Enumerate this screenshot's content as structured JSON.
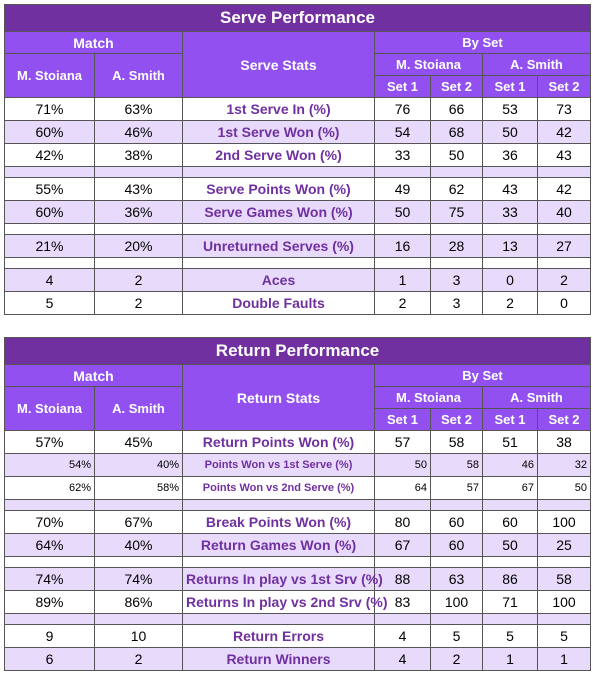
{
  "serve": {
    "title": "Serve Performance",
    "match_header": "Match",
    "stats_header": "Serve Stats",
    "by_set_header": "By Set",
    "players": [
      "M. Stoiana",
      "A. Smith"
    ],
    "sets": [
      "Set 1",
      "Set 2"
    ],
    "groups": [
      [
        {
          "label": "1st Serve In (%)",
          "match": [
            "71%",
            "63%"
          ],
          "by_set": [
            [
              "76",
              "66"
            ],
            [
              "53",
              "73"
            ]
          ]
        },
        {
          "label": "1st Serve Won (%)",
          "match": [
            "60%",
            "46%"
          ],
          "by_set": [
            [
              "54",
              "68"
            ],
            [
              "50",
              "42"
            ]
          ]
        },
        {
          "label": "2nd Serve Won (%)",
          "match": [
            "42%",
            "38%"
          ],
          "by_set": [
            [
              "33",
              "50"
            ],
            [
              "36",
              "43"
            ]
          ]
        }
      ],
      [
        {
          "label": "Serve Points Won (%)",
          "match": [
            "55%",
            "43%"
          ],
          "by_set": [
            [
              "49",
              "62"
            ],
            [
              "43",
              "42"
            ]
          ]
        },
        {
          "label": "Serve Games Won (%)",
          "match": [
            "60%",
            "36%"
          ],
          "by_set": [
            [
              "50",
              "75"
            ],
            [
              "33",
              "40"
            ]
          ]
        }
      ],
      [
        {
          "label": "Unreturned Serves (%)",
          "match": [
            "21%",
            "20%"
          ],
          "by_set": [
            [
              "16",
              "28"
            ],
            [
              "13",
              "27"
            ]
          ]
        }
      ],
      [
        {
          "label": "Aces",
          "match": [
            "4",
            "2"
          ],
          "by_set": [
            [
              "1",
              "3"
            ],
            [
              "0",
              "2"
            ]
          ]
        },
        {
          "label": "Double Faults",
          "match": [
            "5",
            "2"
          ],
          "by_set": [
            [
              "2",
              "3"
            ],
            [
              "2",
              "0"
            ]
          ]
        }
      ]
    ]
  },
  "return": {
    "title": "Return Performance",
    "match_header": "Match",
    "stats_header": "Return Stats",
    "by_set_header": "By Set",
    "players": [
      "M. Stoiana",
      "A. Smith"
    ],
    "sets": [
      "Set 1",
      "Set 2"
    ],
    "groups": [
      [
        {
          "label": "Return Points Won (%)",
          "match": [
            "57%",
            "45%"
          ],
          "by_set": [
            [
              "57",
              "58"
            ],
            [
              "51",
              "38"
            ]
          ],
          "breakdown": [
            {
              "label": "Points Won vs 1st Serve (%)",
              "match": [
                "54%",
                "40%"
              ],
              "by_set": [
                [
                  "50",
                  "58"
                ],
                [
                  "46",
                  "32"
                ]
              ]
            },
            {
              "label": "Points Won vs 2nd Serve (%)",
              "match": [
                "62%",
                "58%"
              ],
              "by_set": [
                [
                  "64",
                  "57"
                ],
                [
                  "67",
                  "50"
                ]
              ]
            }
          ]
        }
      ],
      [
        {
          "label": "Break Points Won (%)",
          "match": [
            "70%",
            "67%"
          ],
          "by_set": [
            [
              "80",
              "60"
            ],
            [
              "60",
              "100"
            ]
          ]
        },
        {
          "label": "Return Games Won (%)",
          "match": [
            "64%",
            "40%"
          ],
          "by_set": [
            [
              "67",
              "60"
            ],
            [
              "50",
              "25"
            ]
          ]
        }
      ],
      [
        {
          "label": "Returns In play vs 1st Srv (%)",
          "match": [
            "74%",
            "74%"
          ],
          "by_set": [
            [
              "88",
              "63"
            ],
            [
              "86",
              "58"
            ]
          ]
        },
        {
          "label": "Returns In play vs 2nd Srv (%)",
          "match": [
            "89%",
            "86%"
          ],
          "by_set": [
            [
              "83",
              "100"
            ],
            [
              "71",
              "100"
            ]
          ]
        }
      ],
      [
        {
          "label": "Return Errors",
          "match": [
            "9",
            "10"
          ],
          "by_set": [
            [
              "4",
              "5"
            ],
            [
              "5",
              "5"
            ]
          ]
        },
        {
          "label": "Return Winners",
          "match": [
            "6",
            "2"
          ],
          "by_set": [
            [
              "4",
              "2"
            ],
            [
              "1",
              "1"
            ]
          ]
        }
      ]
    ]
  }
}
